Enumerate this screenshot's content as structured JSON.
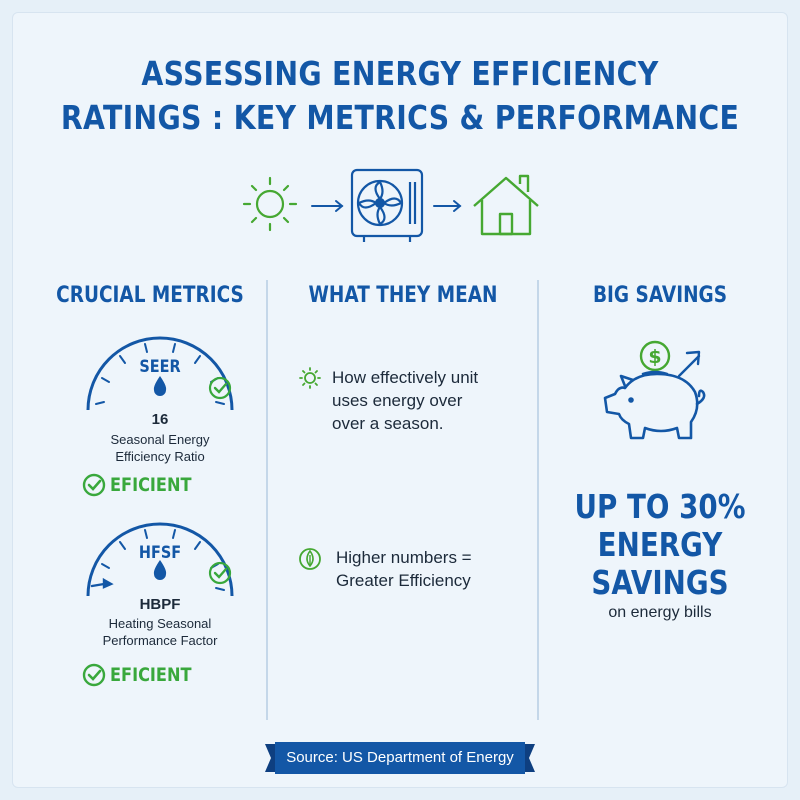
{
  "title": {
    "line1": "ASSESSING ENERGY EFFICIENCY",
    "line2": "RATINGS : KEY METRICS & PERFORMANCE"
  },
  "hero": {
    "icons": [
      "sun-icon",
      "arrow-right-icon",
      "heat-pump-unit-icon",
      "arrow-right-icon",
      "house-icon"
    ]
  },
  "columns": {
    "metrics": {
      "title": "CRUCIAL METRICS"
    },
    "meaning": {
      "title": "WHAT THEY MEAN"
    },
    "savings": {
      "title": "BIG SAVINGS"
    }
  },
  "metrics": [
    {
      "gauge_label": "SEER",
      "value": "16",
      "desc_line1": "Seasonal Energy",
      "desc_line2": "Efficiency Ratio",
      "status": "EFICIENT"
    },
    {
      "gauge_label": "HFSF",
      "value": "HBPF",
      "desc_line1": "Heating Seasonal",
      "desc_line2": "Performance Factor",
      "status": "EFICIENT"
    }
  ],
  "meanings": [
    {
      "icon": "sun-icon",
      "line1": "How effectively unit",
      "line2": "uses energy over",
      "line3": "over a season."
    },
    {
      "icon": "leaf-icon",
      "line1": "Higher numbers =",
      "line2": "Greater Efficiency"
    }
  ],
  "savings": {
    "icon": "piggy-bank-icon",
    "line1": "UP TO 30%",
    "line2": "ENERGY",
    "line3": "SAVINGS",
    "sub": "on energy bills"
  },
  "source": "Source: US Department of Energy",
  "colors": {
    "primary": "#1357a6",
    "accent_green": "#39a83c",
    "text": "#1c2a3a",
    "background": "#eef5fb"
  }
}
